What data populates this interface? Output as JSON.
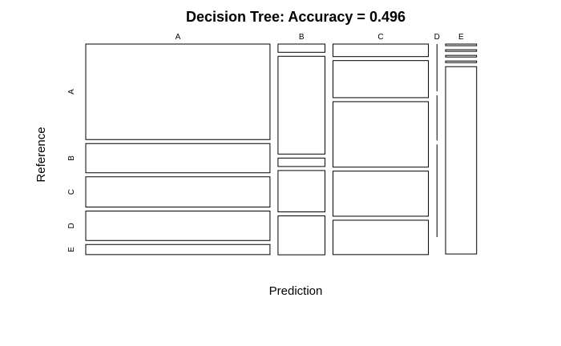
{
  "chart_data": {
    "type": "mosaic",
    "title": "Decision Tree: Accuracy = 0.496",
    "xlabel": "Prediction",
    "ylabel": "Reference",
    "prediction_categories": [
      "A",
      "B",
      "C",
      "D",
      "E"
    ],
    "reference_categories": [
      "A",
      "B",
      "C",
      "D",
      "E"
    ],
    "prediction_proportions": [
      0.475,
      0.121,
      0.246,
      0.003,
      0.08
    ],
    "cells": [
      {
        "prediction": "A",
        "reference_proportions": [
          0.464,
          0.142,
          0.147,
          0.143,
          0.049
        ]
      },
      {
        "prediction": "B",
        "reference_proportions": [
          0.04,
          0.475,
          0.041,
          0.201,
          0.189
        ]
      },
      {
        "prediction": "C",
        "reference_proportions": [
          0.061,
          0.18,
          0.318,
          0.219,
          0.167
        ]
      },
      {
        "prediction": "D",
        "reference_proportions": [
          0.0,
          0.21,
          0.0,
          0.2,
          0.45
        ]
      },
      {
        "prediction": "E",
        "reference_proportions": [
          0.008,
          0.008,
          0.008,
          0.008,
          0.91
        ]
      }
    ]
  }
}
